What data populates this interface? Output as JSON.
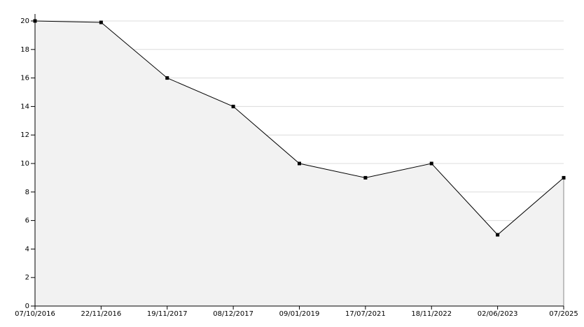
{
  "chart_data": {
    "type": "line",
    "categories": [
      "07/10/2016",
      "22/11/2016",
      "19/11/2017",
      "08/12/2017",
      "09/01/2019",
      "17/07/2021",
      "18/11/2022",
      "02/06/2023",
      "07/2025"
    ],
    "values": [
      20,
      19.9,
      16,
      14,
      10,
      9,
      10,
      5,
      9
    ],
    "color": "#000000",
    "area_color": "#f2f2f2",
    "ylim": [
      0,
      20
    ],
    "yticks": [
      0,
      2,
      4,
      6,
      8,
      10,
      12,
      14,
      16,
      18,
      20
    ],
    "grid": true
  }
}
